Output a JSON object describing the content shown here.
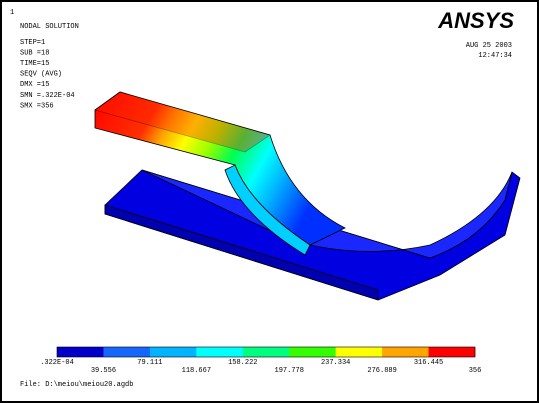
{
  "header": {
    "window_number": "1",
    "title": "NODAL SOLUTION",
    "info": [
      "STEP=1",
      "SUB =18",
      "TIME=15",
      "SEQV     (AVG)",
      "DMX =15",
      "SMN =.322E-04",
      "SMX =356"
    ],
    "logo": "ANSYS",
    "date": "AUG 25 2003",
    "time": "12:47:34"
  },
  "legend": {
    "colors": [
      "#0000c8",
      "#1466ff",
      "#00b4ff",
      "#00ffff",
      "#00ff80",
      "#33ff00",
      "#ffff00",
      "#ffa500",
      "#ff0000"
    ],
    "labels": [
      ".322E-04",
      "39.556",
      "79.111",
      "118.667",
      "158.222",
      "197.778",
      "237.334",
      "276.889",
      "316.445",
      "356"
    ]
  },
  "footer": {
    "file": "File: D:\\meiou\\meiou20.agdb"
  }
}
